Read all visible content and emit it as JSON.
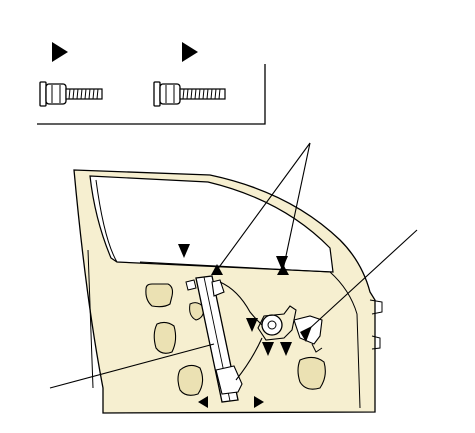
{
  "diagram": {
    "inset_box": {
      "bolts": [
        {
          "name": "flange-bolt-left",
          "marker": "triangle-arrow"
        },
        {
          "name": "flange-bolt-right",
          "marker": "triangle-arrow"
        }
      ]
    },
    "door": {
      "components": [
        "window-regulator-rail",
        "regulator-motor",
        "regulator-cable",
        "door-glass-opening"
      ]
    },
    "colors": {
      "line": "#000000",
      "door_fill": "#f6efd0",
      "hole_fill": "#ebe1b3",
      "part_fill": "#ffffff",
      "background": "#ffffff"
    }
  }
}
